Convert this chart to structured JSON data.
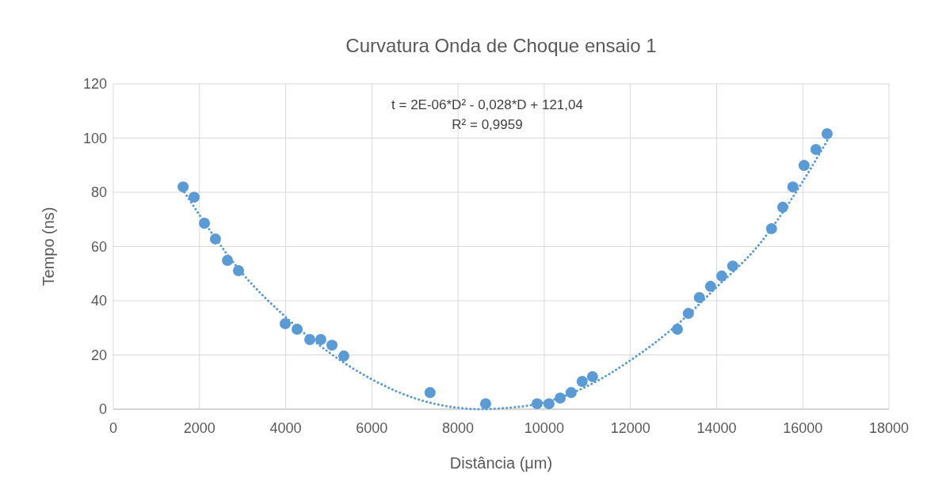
{
  "chart_data": {
    "type": "scatter",
    "title": "Curvatura Onda de Choque ensaio 1",
    "xlabel": "Distância (μm)",
    "ylabel": "Tempo (ns)",
    "annotations": [
      "t = 2E-06*D² - 0,028*D + 121,04",
      "R² = 0,9959"
    ],
    "xlim": [
      0,
      18000
    ],
    "xticks": [
      0,
      2000,
      4000,
      6000,
      8000,
      10000,
      12000,
      14000,
      16000,
      18000
    ],
    "ylim": [
      0,
      120
    ],
    "yticks": [
      0,
      20,
      40,
      60,
      80,
      100,
      120
    ],
    "grid": true,
    "series": [
      {
        "color": "#5b9bd5",
        "marker": "circle",
        "x": [
          1620,
          1875,
          2115,
          2370,
          2650,
          2905,
          3990,
          4265,
          4560,
          4815,
          5075,
          5350,
          7350,
          8640,
          9835,
          10110,
          10370,
          10625,
          10880,
          11120,
          13090,
          13345,
          13600,
          13860,
          14120,
          14375,
          15275,
          15535,
          15770,
          16030,
          16305,
          16565
        ],
        "values": [
          82,
          78.2,
          68.6,
          62.8,
          54.9,
          51.1,
          31.5,
          29.5,
          25.7,
          25.7,
          23.6,
          19.6,
          6.1,
          2,
          2,
          2,
          4.1,
          6.1,
          10.2,
          12,
          29.5,
          35.3,
          41.2,
          45.3,
          49.1,
          52.8,
          66.6,
          74.5,
          82,
          89.9,
          95.8,
          101.6
        ]
      },
      {
        "type": "line",
        "color": "#5b9bd5",
        "marker": "none",
        "line_style": "dotted",
        "x": [
          1650,
          3000,
          4000,
          5000,
          6000,
          7000,
          8000,
          8500,
          9000,
          10000,
          11000,
          12000,
          13000,
          14000,
          15000,
          16000,
          16600
        ],
        "values": [
          80,
          50,
          34,
          21,
          11,
          4,
          0.5,
          0,
          0.3,
          2.5,
          8.5,
          18,
          30,
          45,
          61,
          84,
          100
        ]
      }
    ]
  }
}
